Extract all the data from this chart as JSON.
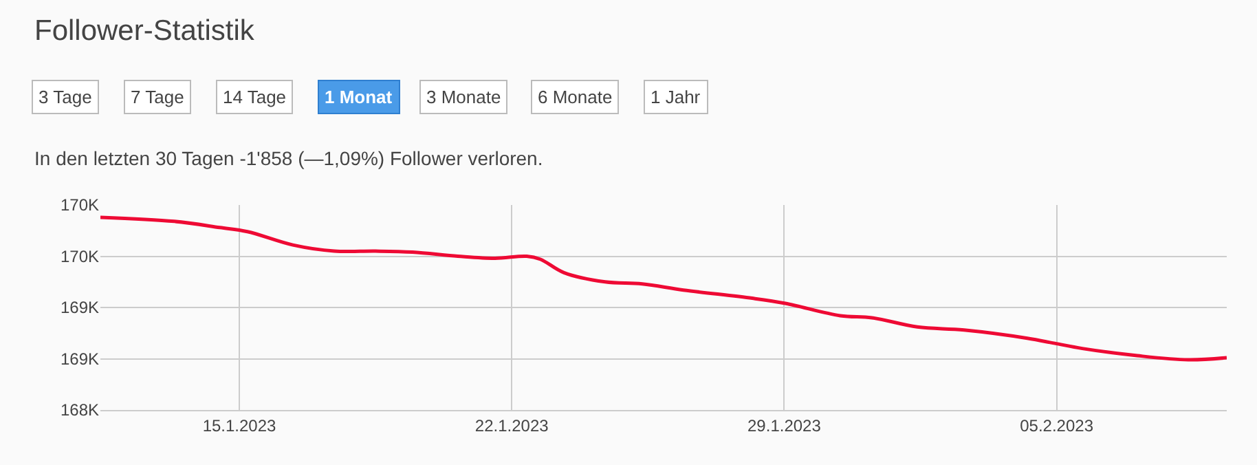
{
  "chart_data": {
    "type": "line",
    "title": "Follower-Statistik",
    "subtitle": "In den letzten 30 Tagen -1'858 (—1,09%) Follower verloren.",
    "annotations": [
      "3 Tage",
      "7 Tage",
      "14 Tage",
      "1 Monat",
      "3 Monate",
      "6 Monate",
      "1 Jahr"
    ],
    "x": [
      "2023-01-11T10:20",
      "2023-01-13T08:00",
      "2023-01-14T12:00",
      "2023-01-15T05:00",
      "2023-01-16T09:00",
      "2023-01-17T10:30",
      "2023-01-18T12:00",
      "2023-01-19T10:50",
      "2023-01-20T14:50",
      "2023-01-21T13:45",
      "2023-01-22T09:15",
      "2023-01-22T17:45",
      "2023-01-23T08:10",
      "2023-01-24T09:35",
      "2023-01-25T08:30",
      "2023-01-26T09:55",
      "2023-01-28T04:20",
      "2023-01-29T00:40",
      "2023-01-30T10:35",
      "2023-01-31T06:05",
      "2023-02-01T10:05",
      "2023-02-02T14:55",
      "2023-02-04T05:55",
      "2023-02-04T22:55",
      "2023-02-05T15:50",
      "2023-02-07T01:45",
      "2023-02-08T09:10",
      "2023-02-09T08:55"
    ],
    "series": [
      {
        "color": "#ee0a34",
        "values": [
          169880,
          169840,
          169780,
          169740,
          169610,
          169550,
          169550,
          169540,
          169500,
          169480,
          169500,
          169470,
          169340,
          169250,
          169230,
          169170,
          169090,
          169040,
          168920,
          168900,
          168810,
          168780,
          168700,
          168650,
          168600,
          168530,
          168490,
          168510
        ]
      }
    ],
    "xlim": [
      "2023-01-11T10:20",
      "2023-02-09T08:55"
    ],
    "xticks": [
      {
        "value": "2023-01-15",
        "label": "15.1.2023"
      },
      {
        "value": "2023-01-22",
        "label": "22.1.2023"
      },
      {
        "value": "2023-01-29",
        "label": "29.1.2023"
      },
      {
        "value": "2023-02-05",
        "label": "05.2.2023"
      }
    ],
    "ylim": [
      168000,
      170000
    ],
    "yticks": [
      {
        "value": 168000,
        "label": "168K"
      },
      {
        "value": 168500,
        "label": "169K"
      },
      {
        "value": 169000,
        "label": "169K"
      },
      {
        "value": 169500,
        "label": "170K"
      },
      {
        "value": 170000,
        "label": "170K"
      }
    ],
    "grid": true,
    "legend": false,
    "marker": "none",
    "line_style": "solid"
  }
}
